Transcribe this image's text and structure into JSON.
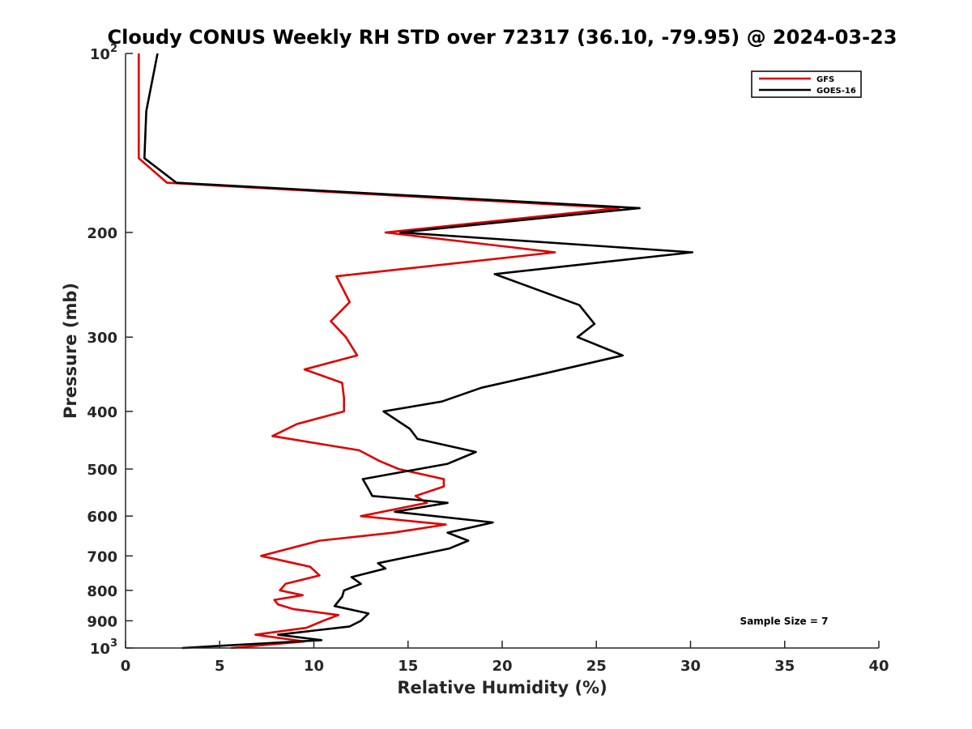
{
  "chart_data": {
    "type": "line",
    "title": "Cloudy CONUS Weekly RH STD over 72317 (36.10, -79.95) @ 2024-03-23",
    "xlabel": "Relative Humidity (%)",
    "ylabel": "Pressure (mb)",
    "xlim": [
      0,
      40
    ],
    "ylim": [
      100,
      1000
    ],
    "y_scale": "log",
    "y_reversed": true,
    "x_ticks": [
      "0",
      "5",
      "10",
      "15",
      "20",
      "25",
      "30",
      "35",
      "40"
    ],
    "y_ticks": [
      {
        "value": 100,
        "base": "10",
        "exp": "2"
      },
      {
        "value": 200,
        "label": "200"
      },
      {
        "value": 300,
        "label": "300"
      },
      {
        "value": 400,
        "label": "400"
      },
      {
        "value": 500,
        "label": "500"
      },
      {
        "value": 600,
        "label": "600"
      },
      {
        "value": 700,
        "label": "700"
      },
      {
        "value": 800,
        "label": "800"
      },
      {
        "value": 900,
        "label": "900"
      },
      {
        "value": 1000,
        "base": "10",
        "exp": "3"
      }
    ],
    "legend_position": "top-right",
    "grid": false,
    "annotation": "Sample Size = 7",
    "series": [
      {
        "name": "GFS",
        "color": "#e00000",
        "points": [
          [
            0.7,
            100
          ],
          [
            0.7,
            125
          ],
          [
            0.7,
            150
          ],
          [
            2.2,
            165
          ],
          [
            26.2,
            182
          ],
          [
            13.8,
            200
          ],
          [
            22.8,
            216
          ],
          [
            11.2,
            237
          ],
          [
            11.9,
            262
          ],
          [
            10.9,
            282
          ],
          [
            11.7,
            300
          ],
          [
            12.3,
            322
          ],
          [
            9.5,
            340
          ],
          [
            11.5,
            358
          ],
          [
            11.6,
            380
          ],
          [
            11.6,
            400
          ],
          [
            9.1,
            420
          ],
          [
            7.8,
            440
          ],
          [
            12.4,
            465
          ],
          [
            13.5,
            485
          ],
          [
            14.5,
            500
          ],
          [
            16.9,
            520
          ],
          [
            16.9,
            535
          ],
          [
            15.4,
            555
          ],
          [
            16.0,
            570
          ],
          [
            12.5,
            600
          ],
          [
            17.0,
            620
          ],
          [
            14.2,
            640
          ],
          [
            10.3,
            660
          ],
          [
            7.2,
            700
          ],
          [
            9.8,
            730
          ],
          [
            10.3,
            755
          ],
          [
            8.5,
            780
          ],
          [
            8.2,
            800
          ],
          [
            9.4,
            815
          ],
          [
            7.9,
            830
          ],
          [
            8.1,
            845
          ],
          [
            8.9,
            860
          ],
          [
            11.3,
            880
          ],
          [
            10.5,
            900
          ],
          [
            9.6,
            925
          ],
          [
            6.9,
            950
          ],
          [
            9.5,
            975
          ],
          [
            5.6,
            1000
          ]
        ]
      },
      {
        "name": "GOES-16",
        "color": "#000000",
        "points": [
          [
            1.7,
            100
          ],
          [
            1.1,
            125
          ],
          [
            1.0,
            150
          ],
          [
            2.7,
            165
          ],
          [
            27.3,
            182
          ],
          [
            14.6,
            200
          ],
          [
            30.1,
            216
          ],
          [
            19.6,
            235
          ],
          [
            24.1,
            265
          ],
          [
            24.9,
            285
          ],
          [
            24.0,
            300
          ],
          [
            26.4,
            322
          ],
          [
            22.3,
            345
          ],
          [
            18.9,
            365
          ],
          [
            16.8,
            385
          ],
          [
            13.7,
            400
          ],
          [
            15.1,
            428
          ],
          [
            15.5,
            445
          ],
          [
            18.6,
            468
          ],
          [
            17.1,
            490
          ],
          [
            12.6,
            520
          ],
          [
            12.9,
            540
          ],
          [
            13.1,
            555
          ],
          [
            15.9,
            565
          ],
          [
            17.1,
            570
          ],
          [
            14.3,
            590
          ],
          [
            19.5,
            615
          ],
          [
            17.1,
            640
          ],
          [
            18.2,
            660
          ],
          [
            17.2,
            680
          ],
          [
            13.4,
            720
          ],
          [
            13.8,
            735
          ],
          [
            12.0,
            760
          ],
          [
            12.5,
            780
          ],
          [
            11.6,
            800
          ],
          [
            11.5,
            820
          ],
          [
            11.1,
            850
          ],
          [
            12.9,
            875
          ],
          [
            12.5,
            900
          ],
          [
            11.9,
            920
          ],
          [
            8.1,
            950
          ],
          [
            10.4,
            970
          ],
          [
            3.0,
            1000
          ]
        ]
      }
    ]
  }
}
